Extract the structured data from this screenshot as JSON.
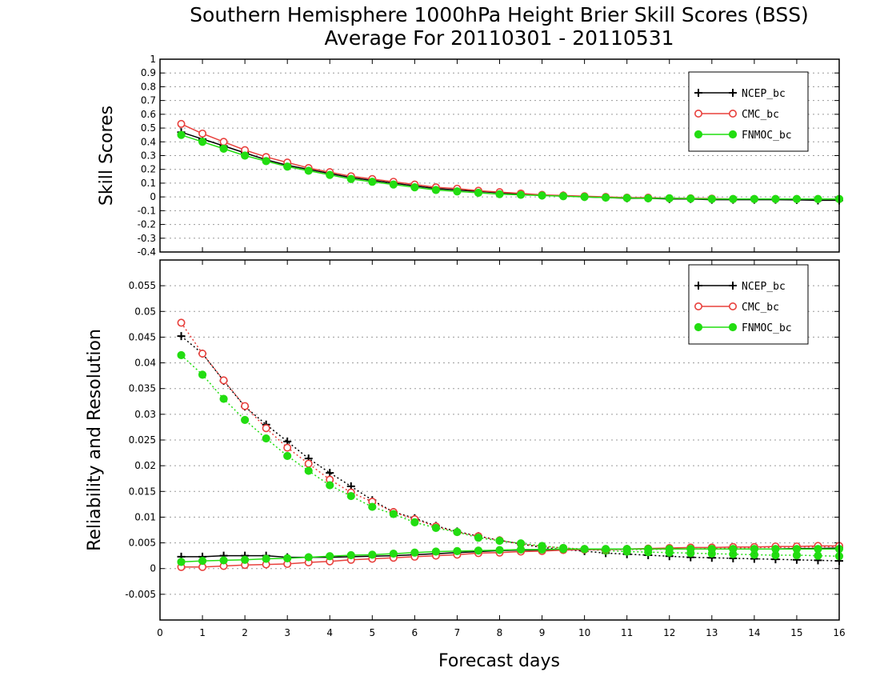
{
  "figure": {
    "title_line1": "Southern Hemisphere 1000hPa Height Brier Skill Scores (BSS)",
    "title_line2": "Average For 20110301 - 20110531",
    "xlabel": "Forecast days"
  },
  "colors": {
    "ncep": "#000000",
    "cmc": "#e8403c",
    "fnmoc": "#22dd11"
  },
  "chart_data": [
    {
      "type": "line",
      "ylabel": "Skill Scores",
      "xlim": [
        0,
        16
      ],
      "ylim": [
        -0.4,
        1
      ],
      "ytick_step": 0.1,
      "xticks": [
        0,
        1,
        2,
        3,
        4,
        5,
        6,
        7,
        8,
        9,
        10,
        11,
        12,
        13,
        14,
        15,
        16
      ],
      "legend_position": "top-right",
      "x": [
        0.5,
        1,
        1.5,
        2,
        2.5,
        3,
        3.5,
        4,
        4.5,
        5,
        5.5,
        6,
        6.5,
        7,
        7.5,
        8,
        8.5,
        9,
        9.5,
        10,
        10.5,
        11,
        11.5,
        12,
        12.5,
        13,
        13.5,
        14,
        14.5,
        15,
        15.5,
        16
      ],
      "series": [
        {
          "name": "NCEP_bc",
          "marker": "plus",
          "color": "#000000",
          "values": [
            0.47,
            0.42,
            0.37,
            0.32,
            0.27,
            0.23,
            0.2,
            0.17,
            0.14,
            0.12,
            0.1,
            0.08,
            0.06,
            0.05,
            0.04,
            0.03,
            0.02,
            0.01,
            0.01,
            0,
            -0.005,
            -0.01,
            -0.01,
            -0.015,
            -0.015,
            -0.02,
            -0.02,
            -0.02,
            -0.02,
            -0.022,
            -0.025,
            -0.025
          ]
        },
        {
          "name": "CMC_bc",
          "marker": "circle-open",
          "color": "#e8403c",
          "values": [
            0.53,
            0.46,
            0.4,
            0.34,
            0.29,
            0.25,
            0.21,
            0.18,
            0.15,
            0.13,
            0.11,
            0.09,
            0.07,
            0.06,
            0.045,
            0.035,
            0.025,
            0.015,
            0.01,
            0.005,
            0,
            -0.005,
            -0.005,
            -0.01,
            -0.01,
            -0.012,
            -0.015,
            -0.015,
            -0.015,
            -0.015,
            -0.015,
            -0.015
          ]
        },
        {
          "name": "FNMOC_bc",
          "marker": "circle-filled",
          "color": "#22dd11",
          "values": [
            0.45,
            0.4,
            0.35,
            0.3,
            0.26,
            0.22,
            0.19,
            0.16,
            0.13,
            0.11,
            0.09,
            0.07,
            0.05,
            0.04,
            0.03,
            0.02,
            0.015,
            0.01,
            0.005,
            0,
            -0.005,
            -0.008,
            -0.01,
            -0.01,
            -0.012,
            -0.015,
            -0.015,
            -0.015,
            -0.015,
            -0.015,
            -0.015,
            -0.015
          ]
        }
      ]
    },
    {
      "type": "line",
      "ylabel": "Reliability and Resolution",
      "xlim": [
        0,
        16
      ],
      "ylim": [
        -0.01,
        0.06
      ],
      "ytick_step": 0.005,
      "ytick_min": -0.005,
      "ytick_max": 0.055,
      "xticks": [
        0,
        1,
        2,
        3,
        4,
        5,
        6,
        7,
        8,
        9,
        10,
        11,
        12,
        13,
        14,
        15,
        16
      ],
      "legend_position": "top-right",
      "x": [
        0.5,
        1,
        1.5,
        2,
        2.5,
        3,
        3.5,
        4,
        4.5,
        5,
        5.5,
        6,
        6.5,
        7,
        7.5,
        8,
        8.5,
        9,
        9.5,
        10,
        10.5,
        11,
        11.5,
        12,
        12.5,
        13,
        13.5,
        14,
        14.5,
        15,
        15.5,
        16
      ],
      "series": [
        {
          "name": "NCEP_bc",
          "group": "resolution",
          "style": "dotted",
          "marker": "plus",
          "color": "#000000",
          "values": [
            0.0452,
            0.0418,
            0.0365,
            0.0315,
            0.028,
            0.0247,
            0.0214,
            0.0186,
            0.016,
            0.0133,
            0.011,
            0.0098,
            0.0083,
            0.0072,
            0.0063,
            0.0055,
            0.0048,
            0.0041,
            0.0037,
            0.0034,
            0.003,
            0.0028,
            0.0026,
            0.0024,
            0.0022,
            0.0021,
            0.002,
            0.0019,
            0.0018,
            0.0017,
            0.0016,
            0.0015
          ]
        },
        {
          "name": "CMC_bc",
          "group": "resolution",
          "style": "dotted",
          "marker": "circle-open",
          "color": "#e8403c",
          "values": [
            0.0478,
            0.0418,
            0.0366,
            0.0316,
            0.0273,
            0.0235,
            0.0204,
            0.0173,
            0.0148,
            0.013,
            0.011,
            0.0096,
            0.0082,
            0.0071,
            0.0063,
            0.0055,
            0.0048,
            0.0043,
            0.004,
            0.0038,
            0.0037,
            0.0037,
            0.0037,
            0.0038,
            0.0038,
            0.0039,
            0.004,
            0.0041,
            0.0041,
            0.0042,
            0.0042,
            0.0043
          ]
        },
        {
          "name": "FNMOC_bc",
          "group": "resolution",
          "style": "dotted",
          "marker": "circle-filled",
          "color": "#22dd11",
          "values": [
            0.0415,
            0.0377,
            0.033,
            0.0289,
            0.0253,
            0.0219,
            0.019,
            0.0162,
            0.0141,
            0.012,
            0.0106,
            0.009,
            0.0079,
            0.0071,
            0.006,
            0.0054,
            0.0049,
            0.0044,
            0.004,
            0.0037,
            0.0035,
            0.0033,
            0.0032,
            0.0031,
            0.003,
            0.0029,
            0.0028,
            0.0027,
            0.0026,
            0.0026,
            0.0025,
            0.0024
          ]
        },
        {
          "name": "NCEP_bc",
          "group": "reliability",
          "style": "solid",
          "marker": "plus",
          "color": "#000000",
          "values": [
            0.0023,
            0.0023,
            0.0025,
            0.0025,
            0.0025,
            0.0022,
            0.0022,
            0.0022,
            0.0023,
            0.0024,
            0.0025,
            0.0027,
            0.0029,
            0.0031,
            0.0033,
            0.0035,
            0.0036,
            0.0036,
            0.0037,
            0.0037,
            0.0037,
            0.0038,
            0.0038,
            0.0038,
            0.0038,
            0.0038,
            0.0038,
            0.0038,
            0.0038,
            0.0039,
            0.0039,
            0.004
          ]
        },
        {
          "name": "CMC_bc",
          "group": "reliability",
          "style": "solid",
          "marker": "circle-open",
          "color": "#e8403c",
          "values": [
            0.0003,
            0.0003,
            0.0005,
            0.0007,
            0.0008,
            0.0009,
            0.0012,
            0.0014,
            0.0017,
            0.0019,
            0.0021,
            0.0023,
            0.0025,
            0.0027,
            0.003,
            0.0031,
            0.0033,
            0.0034,
            0.0036,
            0.0037,
            0.0037,
            0.0038,
            0.0039,
            0.004,
            0.0041,
            0.0041,
            0.0042,
            0.0042,
            0.0043,
            0.0043,
            0.0044,
            0.0044
          ]
        },
        {
          "name": "FNMOC_bc",
          "group": "reliability",
          "style": "solid",
          "marker": "circle-filled",
          "color": "#22dd11",
          "values": [
            0.0013,
            0.0015,
            0.0016,
            0.0017,
            0.0019,
            0.002,
            0.0022,
            0.0024,
            0.0026,
            0.0027,
            0.0029,
            0.0031,
            0.0033,
            0.0034,
            0.0035,
            0.0036,
            0.0037,
            0.0037,
            0.0038,
            0.0038,
            0.0038,
            0.0038,
            0.0038,
            0.0038,
            0.0038,
            0.0038,
            0.0038,
            0.0038,
            0.0038,
            0.0038,
            0.0038,
            0.0038
          ]
        }
      ]
    }
  ]
}
